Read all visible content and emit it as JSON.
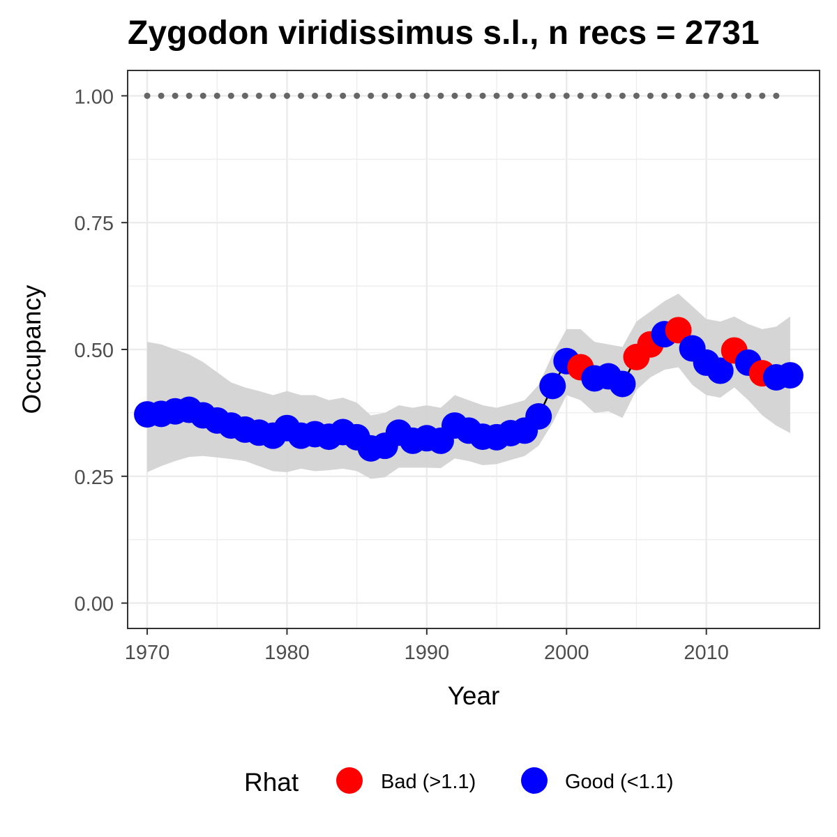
{
  "chart_data": {
    "type": "line",
    "title": "Zygodon viridissimus s.l., n recs = 2731",
    "xlabel": "Year",
    "ylabel": "Occupancy",
    "xlim": [
      1968.6,
      2018.1
    ],
    "ylim": [
      -0.05,
      1.05
    ],
    "x_ticks": [
      1970,
      1980,
      1990,
      2000,
      2010
    ],
    "x_tick_labels": [
      "1970",
      "1980",
      "1990",
      "2000",
      "2010"
    ],
    "y_ticks": [
      0,
      0.25,
      0.5,
      0.75,
      1.0
    ],
    "y_tick_labels": [
      "0.00",
      "0.25",
      "0.50",
      "0.75",
      "1.00"
    ],
    "grid": true,
    "legend": {
      "title": "Rhat",
      "position": "bottom",
      "entries": [
        {
          "label": "Bad (>1.1)",
          "color": "#ff0000"
        },
        {
          "label": "Good (<1.1)",
          "color": "#0000ff"
        }
      ]
    },
    "series": [
      {
        "x": [
          1970,
          1971,
          1972,
          1973,
          1974,
          1975,
          1976,
          1977,
          1978,
          1979,
          1980,
          1981,
          1982,
          1983,
          1984,
          1985,
          1986,
          1987,
          1988,
          1989,
          1990,
          1991,
          1992,
          1993,
          1994,
          1995,
          1996,
          1997,
          1998,
          1999,
          2000,
          2001,
          2002,
          2003,
          2004,
          2005,
          2006,
          2007,
          2008,
          2009,
          2010,
          2011,
          2012,
          2013,
          2014,
          2015,
          2016
        ],
        "values": [
          0.372,
          0.373,
          0.378,
          0.381,
          0.37,
          0.36,
          0.35,
          0.342,
          0.336,
          0.33,
          0.345,
          0.33,
          0.333,
          0.328,
          0.337,
          0.327,
          0.305,
          0.31,
          0.336,
          0.32,
          0.325,
          0.32,
          0.35,
          0.34,
          0.328,
          0.327,
          0.335,
          0.34,
          0.368,
          0.428,
          0.477,
          0.465,
          0.443,
          0.447,
          0.432,
          0.485,
          0.51,
          0.53,
          0.538,
          0.502,
          0.474,
          0.458,
          0.498,
          0.474,
          0.453,
          0.445,
          0.449
        ],
        "rhat": [
          "Good",
          "Good",
          "Good",
          "Good",
          "Good",
          "Good",
          "Good",
          "Good",
          "Good",
          "Good",
          "Good",
          "Good",
          "Good",
          "Good",
          "Good",
          "Good",
          "Good",
          "Good",
          "Good",
          "Good",
          "Good",
          "Good",
          "Good",
          "Good",
          "Good",
          "Good",
          "Good",
          "Good",
          "Good",
          "Good",
          "Good",
          "Bad",
          "Good",
          "Good",
          "Good",
          "Bad",
          "Bad",
          "Good",
          "Bad",
          "Good",
          "Good",
          "Good",
          "Bad",
          "Good",
          "Bad",
          "Good",
          "Good"
        ],
        "lower": [
          0.258,
          0.27,
          0.28,
          0.288,
          0.29,
          0.287,
          0.284,
          0.28,
          0.27,
          0.26,
          0.258,
          0.265,
          0.26,
          0.262,
          0.265,
          0.26,
          0.245,
          0.248,
          0.267,
          0.267,
          0.267,
          0.266,
          0.285,
          0.28,
          0.272,
          0.274,
          0.282,
          0.29,
          0.31,
          0.355,
          0.41,
          0.4,
          0.375,
          0.378,
          0.365,
          0.42,
          0.445,
          0.46,
          0.465,
          0.43,
          0.41,
          0.405,
          0.425,
          0.4,
          0.37,
          0.35,
          0.335
        ],
        "upper": [
          0.515,
          0.51,
          0.5,
          0.49,
          0.475,
          0.455,
          0.435,
          0.425,
          0.418,
          0.41,
          0.418,
          0.41,
          0.41,
          0.4,
          0.405,
          0.395,
          0.37,
          0.375,
          0.39,
          0.385,
          0.39,
          0.385,
          0.41,
          0.4,
          0.39,
          0.385,
          0.392,
          0.4,
          0.43,
          0.49,
          0.54,
          0.54,
          0.515,
          0.51,
          0.505,
          0.555,
          0.575,
          0.595,
          0.61,
          0.585,
          0.56,
          0.555,
          0.565,
          0.55,
          0.54,
          0.545,
          0.565
        ]
      },
      {
        "x": [
          1970,
          1971,
          1972,
          1973,
          1974,
          1975,
          1976,
          1977,
          1978,
          1979,
          1980,
          1981,
          1982,
          1983,
          1984,
          1985,
          1986,
          1987,
          1988,
          1989,
          1990,
          1991,
          1992,
          1993,
          1994,
          1995,
          1996,
          1997,
          1998,
          1999,
          2000,
          2001,
          2002,
          2003,
          2004,
          2005,
          2006,
          2007,
          2008,
          2009,
          2010,
          2011,
          2012,
          2013,
          2014,
          2015
        ],
        "values": [
          1,
          1,
          1,
          1,
          1,
          1,
          1,
          1,
          1,
          1,
          1,
          1,
          1,
          1,
          1,
          1,
          1,
          1,
          1,
          1,
          1,
          1,
          1,
          1,
          1,
          1,
          1,
          1,
          1,
          1,
          1,
          1,
          1,
          1,
          1,
          1,
          1,
          1,
          1,
          1,
          1,
          1,
          1,
          1,
          1,
          1
        ]
      }
    ],
    "colors": {
      "bad": "#ff0000",
      "good": "#0000ff",
      "ribbon": "#d3d3d3",
      "line": "#000000",
      "dots": "#666666",
      "grid": "#ebebeb",
      "panel_border": "#333333",
      "tick_text": "#4d4d4d"
    }
  }
}
